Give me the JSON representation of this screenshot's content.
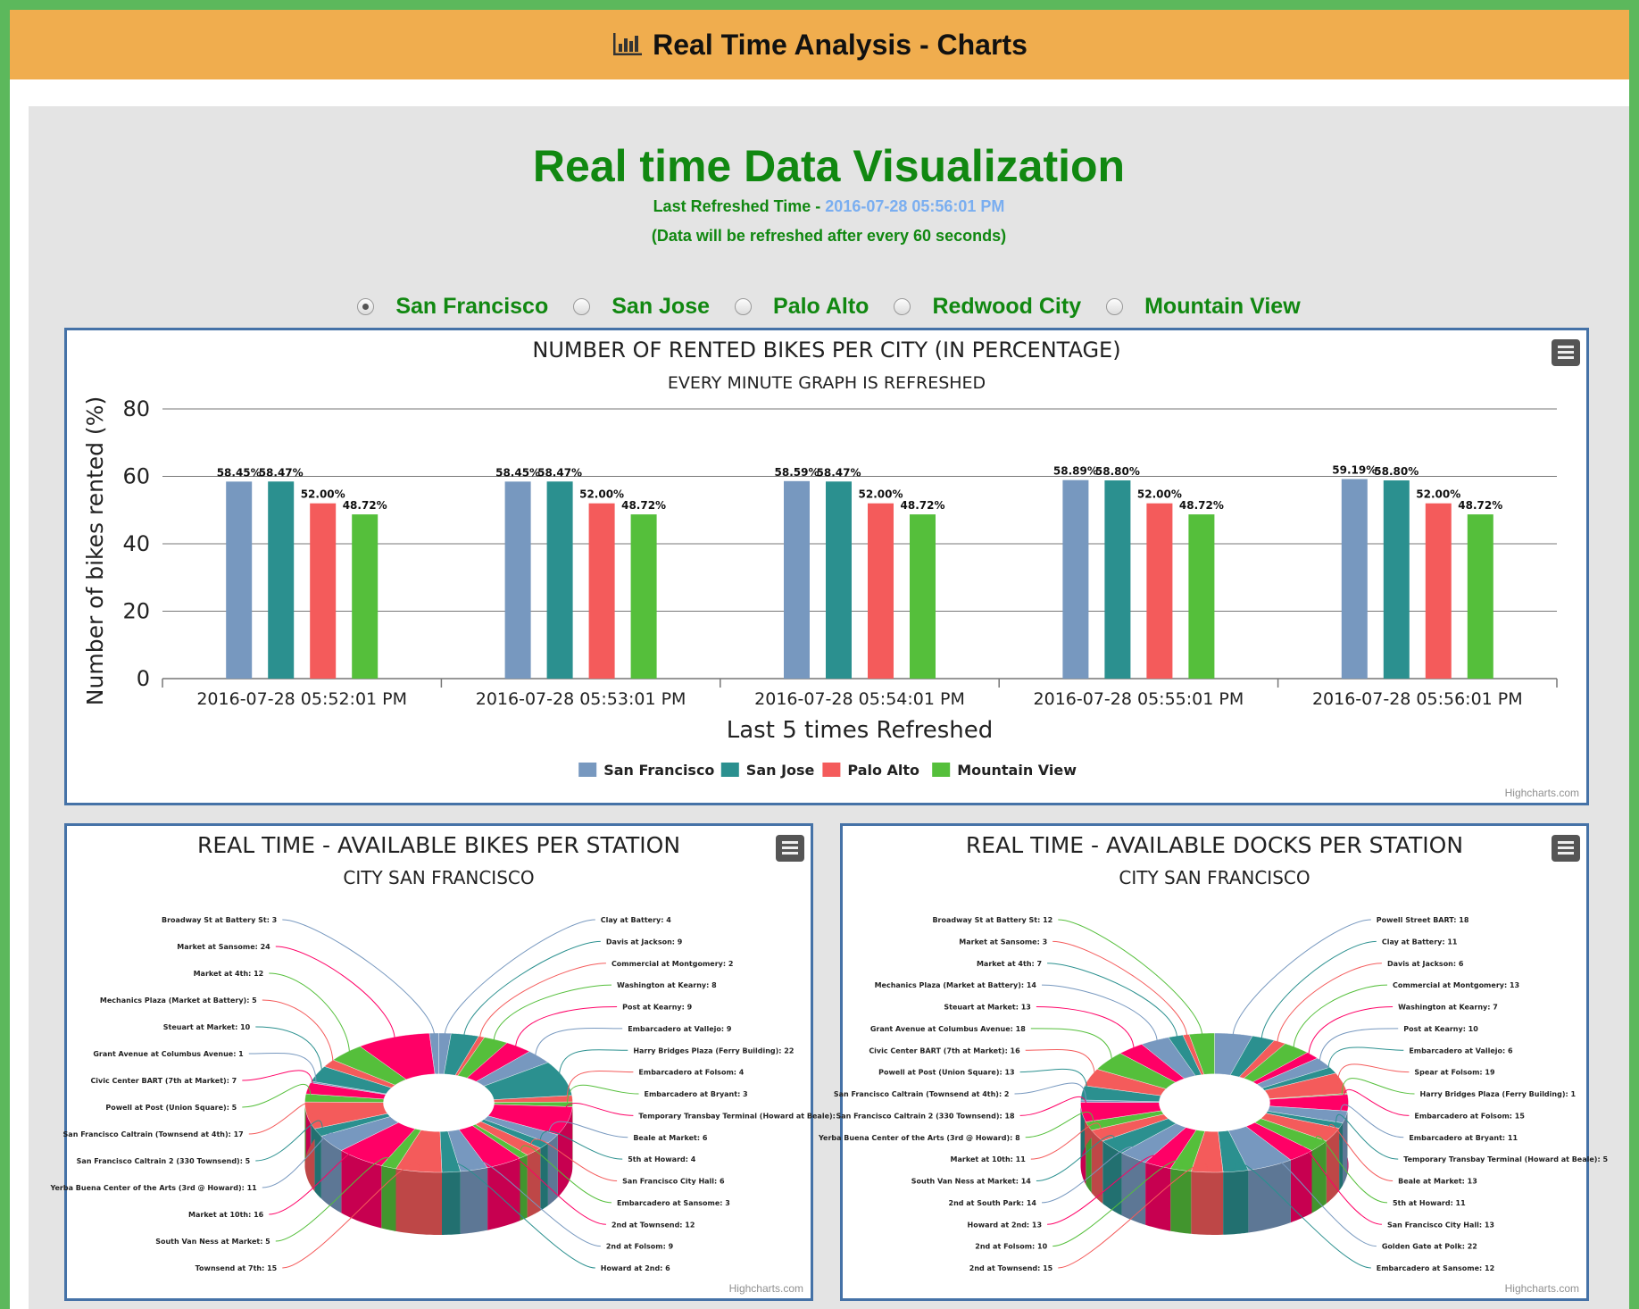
{
  "header": {
    "title": "Real Time Analysis - Charts",
    "icon": "bar-chart-icon"
  },
  "page": {
    "title": "Real time Data Visualization",
    "refreshed_label": "Last Refreshed Time - ",
    "refreshed_time": "2016-07-28 05:56:01 PM",
    "refresh_note": "(Data will be refreshed after every 60 seconds)"
  },
  "city_selector": {
    "selected": "San Francisco",
    "options": [
      "San Francisco",
      "San Jose",
      "Palo Alto",
      "Redwood City",
      "Mountain View"
    ]
  },
  "credits": "Highcharts.com",
  "chart_data": [
    {
      "type": "bar",
      "title": "NUMBER OF RENTED BIKES PER CITY (IN PERCENTAGE)",
      "subtitle": "EVERY MINUTE GRAPH IS REFRESHED",
      "xlabel": "Last 5 times Refreshed",
      "ylabel": "Number of bikes rented (%)",
      "ylim": [
        0,
        80
      ],
      "yticks": [
        0,
        20,
        40,
        60,
        80
      ],
      "grid": true,
      "legend": "bottom-center",
      "categories": [
        "2016-07-28 05:52:01 PM",
        "2016-07-28 05:53:01 PM",
        "2016-07-28 05:54:01 PM",
        "2016-07-28 05:55:01 PM",
        "2016-07-28 05:56:01 PM"
      ],
      "series": [
        {
          "name": "San Francisco",
          "color": "#7798bf",
          "values": [
            58.45,
            58.45,
            58.59,
            58.89,
            59.19
          ],
          "labels": [
            "58.45%",
            "58.45%",
            "58.59%",
            "58.89%",
            "59.19%"
          ]
        },
        {
          "name": "San Jose",
          "color": "#2b908f",
          "values": [
            58.47,
            58.47,
            58.47,
            58.8,
            58.8
          ],
          "labels": [
            "58.47%",
            "58.47%",
            "58.47%",
            "58.80%",
            "58.80%"
          ]
        },
        {
          "name": "Palo Alto",
          "color": "#f45b5b",
          "values": [
            52.0,
            52.0,
            52.0,
            52.0,
            52.0
          ],
          "labels": [
            "52.00%",
            "52.00%",
            "52.00%",
            "52.00%",
            "52.00%"
          ]
        },
        {
          "name": "Mountain View",
          "color": "#55bf3b",
          "values": [
            48.72,
            48.72,
            48.72,
            48.72,
            48.72
          ],
          "labels": [
            "48.72%",
            "48.72%",
            "48.72%",
            "48.72%",
            "48.72%"
          ]
        }
      ]
    },
    {
      "type": "pie",
      "variant": "3d-donut",
      "title": "REAL TIME - AVAILABLE BIKES PER STATION",
      "subtitle": "CITY SAN FRANCISCO",
      "colors": [
        "#7798bf",
        "#2b908f",
        "#f45b5b",
        "#55bf3b",
        "#ff0066"
      ],
      "slices": [
        {
          "label": "Clay at Battery",
          "value": 4
        },
        {
          "label": "Davis at Jackson",
          "value": 9
        },
        {
          "label": "Commercial at Montgomery",
          "value": 2
        },
        {
          "label": "Washington at Kearny",
          "value": 8
        },
        {
          "label": "Post at Kearny",
          "value": 9
        },
        {
          "label": "Embarcadero at Vallejo",
          "value": 9
        },
        {
          "label": "Harry Bridges Plaza (Ferry Building)",
          "value": 22
        },
        {
          "label": "Embarcadero at Folsom",
          "value": 4
        },
        {
          "label": "Embarcadero at Bryant",
          "value": 3
        },
        {
          "label": "Temporary Transbay Terminal (Howard at Beale)",
          "value": 18
        },
        {
          "label": "Beale at Market",
          "value": 6
        },
        {
          "label": "5th at Howard",
          "value": 4
        },
        {
          "label": "San Francisco City Hall",
          "value": 6
        },
        {
          "label": "Embarcadero at Sansome",
          "value": 3
        },
        {
          "label": "2nd at Townsend",
          "value": 12
        },
        {
          "label": "2nd at Folsom",
          "value": 9
        },
        {
          "label": "Howard at 2nd",
          "value": 6
        },
        {
          "label": "Townsend at 7th",
          "value": 15
        },
        {
          "label": "South Van Ness at Market",
          "value": 5
        },
        {
          "label": "Market at 10th",
          "value": 16
        },
        {
          "label": "Yerba Buena Center of the Arts (3rd @ Howard)",
          "value": 11
        },
        {
          "label": "San Francisco Caltrain 2 (330 Townsend)",
          "value": 5
        },
        {
          "label": "San Francisco Caltrain (Townsend at 4th)",
          "value": 17
        },
        {
          "label": "Powell at Post (Union Square)",
          "value": 5
        },
        {
          "label": "Civic Center BART (7th at Market)",
          "value": 7
        },
        {
          "label": "Grant Avenue at Columbus Avenue",
          "value": 1
        },
        {
          "label": "Steuart at Market",
          "value": 10
        },
        {
          "label": "Mechanics Plaza (Market at Battery)",
          "value": 5
        },
        {
          "label": "Market at 4th",
          "value": 12
        },
        {
          "label": "Market at Sansome",
          "value": 24
        },
        {
          "label": "Broadway St at Battery St",
          "value": 3
        }
      ]
    },
    {
      "type": "pie",
      "variant": "3d-donut",
      "title": "REAL TIME - AVAILABLE DOCKS PER STATION",
      "subtitle": "CITY SAN FRANCISCO",
      "colors": [
        "#7798bf",
        "#2b908f",
        "#f45b5b",
        "#55bf3b",
        "#ff0066"
      ],
      "slices": [
        {
          "label": "Powell Street BART",
          "value": 18
        },
        {
          "label": "Clay at Battery",
          "value": 11
        },
        {
          "label": "Davis at Jackson",
          "value": 6
        },
        {
          "label": "Commercial at Montgomery",
          "value": 13
        },
        {
          "label": "Washington at Kearny",
          "value": 7
        },
        {
          "label": "Post at Kearny",
          "value": 10
        },
        {
          "label": "Embarcadero at Vallejo",
          "value": 6
        },
        {
          "label": "Spear at Folsom",
          "value": 19
        },
        {
          "label": "Harry Bridges Plaza (Ferry Building)",
          "value": 1
        },
        {
          "label": "Embarcadero at Folsom",
          "value": 15
        },
        {
          "label": "Embarcadero at Bryant",
          "value": 11
        },
        {
          "label": "Temporary Transbay Terminal (Howard at Beale)",
          "value": 5
        },
        {
          "label": "Beale at Market",
          "value": 13
        },
        {
          "label": "5th at Howard",
          "value": 11
        },
        {
          "label": "San Francisco City Hall",
          "value": 13
        },
        {
          "label": "Golden Gate at Polk",
          "value": 22
        },
        {
          "label": "Embarcadero at Sansome",
          "value": 12
        },
        {
          "label": "2nd at Townsend",
          "value": 15
        },
        {
          "label": "2nd at Folsom",
          "value": 10
        },
        {
          "label": "Howard at 2nd",
          "value": 13
        },
        {
          "label": "2nd at South Park",
          "value": 14
        },
        {
          "label": "South Van Ness at Market",
          "value": 14
        },
        {
          "label": "Market at 10th",
          "value": 11
        },
        {
          "label": "Yerba Buena Center of the Arts (3rd @ Howard)",
          "value": 8
        },
        {
          "label": "San Francisco Caltrain 2 (330 Townsend)",
          "value": 18
        },
        {
          "label": "San Francisco Caltrain (Townsend at 4th)",
          "value": 2
        },
        {
          "label": "Powell at Post (Union Square)",
          "value": 13
        },
        {
          "label": "Civic Center BART (7th at Market)",
          "value": 16
        },
        {
          "label": "Grant Avenue at Columbus Avenue",
          "value": 18
        },
        {
          "label": "Steuart at Market",
          "value": 13
        },
        {
          "label": "Mechanics Plaza (Market at Battery)",
          "value": 14
        },
        {
          "label": "Market at 4th",
          "value": 7
        },
        {
          "label": "Market at Sansome",
          "value": 3
        },
        {
          "label": "Broadway St at Battery St",
          "value": 12
        }
      ]
    }
  ]
}
